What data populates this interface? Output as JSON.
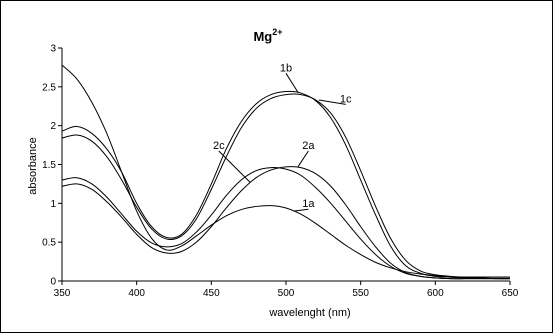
{
  "chart_data": {
    "type": "line",
    "title": "Mg",
    "title_superscript": "2+",
    "xlabel": "wavelenght (nm)",
    "ylabel": "absorbance",
    "xlim": [
      350,
      650
    ],
    "ylim": [
      0,
      3
    ],
    "xticks": [
      "350",
      "400",
      "450",
      "500",
      "550",
      "600",
      "650"
    ],
    "yticks": [
      "0",
      "0.5",
      "1",
      "1.5",
      "2",
      "2.5",
      "3"
    ],
    "grid": false,
    "legend": "none",
    "series": [
      {
        "name": "1a",
        "x": [
          350,
          360,
          370,
          380,
          390,
          400,
          410,
          420,
          430,
          440,
          450,
          460,
          470,
          480,
          490,
          500,
          510,
          520,
          530,
          540,
          550,
          560,
          570,
          580,
          590,
          600,
          610,
          620,
          630,
          640,
          650
        ],
        "y": [
          2.78,
          2.6,
          2.3,
          1.9,
          1.4,
          0.9,
          0.55,
          0.4,
          0.45,
          0.58,
          0.72,
          0.84,
          0.92,
          0.96,
          0.97,
          0.94,
          0.86,
          0.74,
          0.6,
          0.46,
          0.34,
          0.24,
          0.17,
          0.12,
          0.09,
          0.07,
          0.05,
          0.04,
          0.04,
          0.03,
          0.03
        ]
      },
      {
        "name": "1b",
        "x": [
          350,
          360,
          370,
          380,
          390,
          400,
          410,
          420,
          430,
          440,
          450,
          460,
          470,
          480,
          490,
          500,
          510,
          520,
          530,
          540,
          550,
          560,
          570,
          580,
          590,
          600,
          610,
          620,
          630,
          640,
          650
        ],
        "y": [
          1.93,
          1.99,
          1.9,
          1.7,
          1.4,
          1.0,
          0.7,
          0.56,
          0.6,
          0.85,
          1.25,
          1.7,
          2.05,
          2.28,
          2.4,
          2.44,
          2.42,
          2.32,
          2.1,
          1.75,
          1.3,
          0.85,
          0.45,
          0.2,
          0.1,
          0.06,
          0.05,
          0.05,
          0.05,
          0.05,
          0.05
        ]
      },
      {
        "name": "1c",
        "x": [
          350,
          360,
          370,
          380,
          390,
          400,
          410,
          420,
          430,
          440,
          450,
          460,
          470,
          480,
          490,
          500,
          510,
          520,
          530,
          540,
          550,
          560,
          570,
          580,
          590,
          600,
          610,
          620,
          630,
          640,
          650
        ],
        "y": [
          1.84,
          1.88,
          1.8,
          1.6,
          1.3,
          0.95,
          0.67,
          0.54,
          0.58,
          0.8,
          1.18,
          1.6,
          1.97,
          2.22,
          2.35,
          2.4,
          2.4,
          2.33,
          2.16,
          1.85,
          1.42,
          0.96,
          0.55,
          0.27,
          0.13,
          0.08,
          0.06,
          0.05,
          0.05,
          0.05,
          0.05
        ]
      },
      {
        "name": "2a",
        "x": [
          350,
          360,
          370,
          380,
          390,
          400,
          410,
          420,
          430,
          440,
          450,
          460,
          470,
          480,
          490,
          500,
          510,
          520,
          530,
          540,
          550,
          560,
          570,
          580,
          590,
          600,
          610,
          620,
          630,
          640,
          650
        ],
        "y": [
          1.22,
          1.25,
          1.18,
          1.02,
          0.82,
          0.6,
          0.43,
          0.36,
          0.38,
          0.5,
          0.7,
          0.94,
          1.16,
          1.33,
          1.43,
          1.47,
          1.46,
          1.38,
          1.22,
          0.98,
          0.7,
          0.44,
          0.23,
          0.11,
          0.06,
          0.04,
          0.03,
          0.03,
          0.03,
          0.03,
          0.03
        ]
      },
      {
        "name": "2c",
        "x": [
          350,
          360,
          370,
          380,
          390,
          400,
          410,
          420,
          430,
          440,
          450,
          460,
          470,
          480,
          490,
          500,
          510,
          520,
          530,
          540,
          550,
          560,
          570,
          580,
          590,
          600,
          610,
          620,
          630,
          640,
          650
        ],
        "y": [
          1.3,
          1.33,
          1.25,
          1.08,
          0.86,
          0.64,
          0.49,
          0.44,
          0.48,
          0.63,
          0.85,
          1.1,
          1.3,
          1.42,
          1.46,
          1.44,
          1.36,
          1.2,
          1.0,
          0.77,
          0.54,
          0.34,
          0.19,
          0.1,
          0.06,
          0.04,
          0.03,
          0.03,
          0.03,
          0.03,
          0.03
        ]
      }
    ],
    "annotations": [
      {
        "text": "1b",
        "series": "1b",
        "label_x": 500,
        "label_y": 2.7,
        "point_x": 508,
        "point_y": 2.43
      },
      {
        "text": "1c",
        "series": "1c",
        "label_x": 540,
        "label_y": 2.3,
        "point_x": 522,
        "point_y": 2.33
      },
      {
        "text": "2c",
        "series": "2c",
        "label_x": 455,
        "label_y": 1.7,
        "point_x": 476,
        "point_y": 1.27
      },
      {
        "text": "2a",
        "series": "2a",
        "label_x": 515,
        "label_y": 1.7,
        "point_x": 508,
        "point_y": 1.47
      },
      {
        "text": "1a",
        "series": "1a",
        "label_x": 515,
        "label_y": 0.95,
        "point_x": 505,
        "point_y": 0.9
      }
    ]
  }
}
